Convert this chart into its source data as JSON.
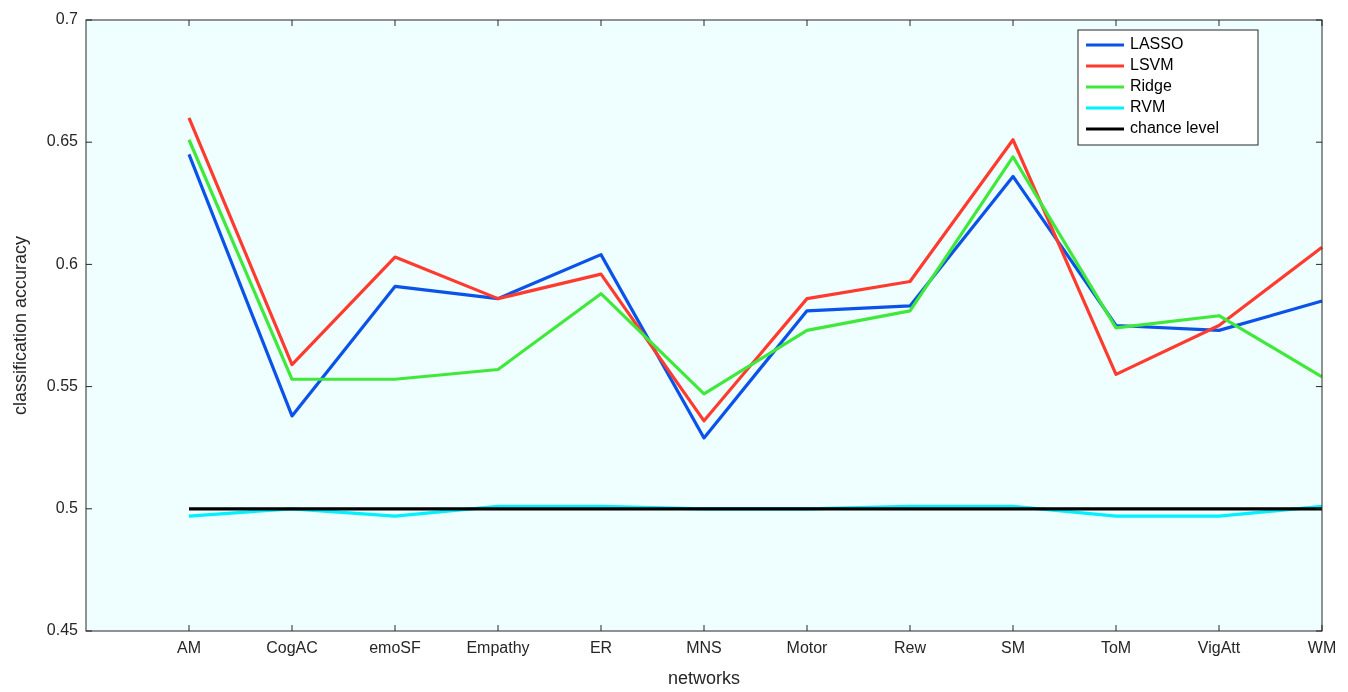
{
  "chart_data": {
    "type": "line",
    "xlabel": "networks",
    "ylabel": "classification accuracy",
    "categories": [
      "AM",
      "CogAC",
      "emoSF",
      "Empathy",
      "ER",
      "MNS",
      "Motor",
      "Rew",
      "SM",
      "ToM",
      "VigAtt",
      "WM"
    ],
    "ylim": [
      0.45,
      0.7
    ],
    "yticks": [
      0.45,
      0.5,
      0.55,
      0.6,
      0.65,
      0.7
    ],
    "grid": false,
    "legend": "top right",
    "marker": "none",
    "line_style": "solid",
    "series": [
      {
        "name": "LASSO",
        "color": "#0a52e8",
        "values": [
          0.645,
          0.538,
          0.591,
          0.586,
          0.604,
          0.529,
          0.581,
          0.583,
          0.636,
          0.575,
          0.573,
          0.585
        ]
      },
      {
        "name": "LSVM",
        "color": "#ff3b2f",
        "values": [
          0.66,
          0.559,
          0.603,
          0.586,
          0.596,
          0.536,
          0.586,
          0.593,
          0.651,
          0.555,
          0.575,
          0.607
        ]
      },
      {
        "name": "Ridge",
        "color": "#40e83c",
        "values": [
          0.651,
          0.553,
          0.553,
          0.557,
          0.588,
          0.547,
          0.573,
          0.581,
          0.644,
          0.574,
          0.579,
          0.554
        ]
      },
      {
        "name": "RVM",
        "color": "#00f0ff",
        "values": [
          0.497,
          0.5,
          0.497,
          0.501,
          0.501,
          0.5,
          0.5,
          0.501,
          0.501,
          0.497,
          0.497,
          0.501
        ]
      },
      {
        "name": "chance level",
        "color": "#000000",
        "values": [
          0.5,
          0.5,
          0.5,
          0.5,
          0.5,
          0.5,
          0.5,
          0.5,
          0.5,
          0.5,
          0.5,
          0.5
        ]
      }
    ]
  }
}
